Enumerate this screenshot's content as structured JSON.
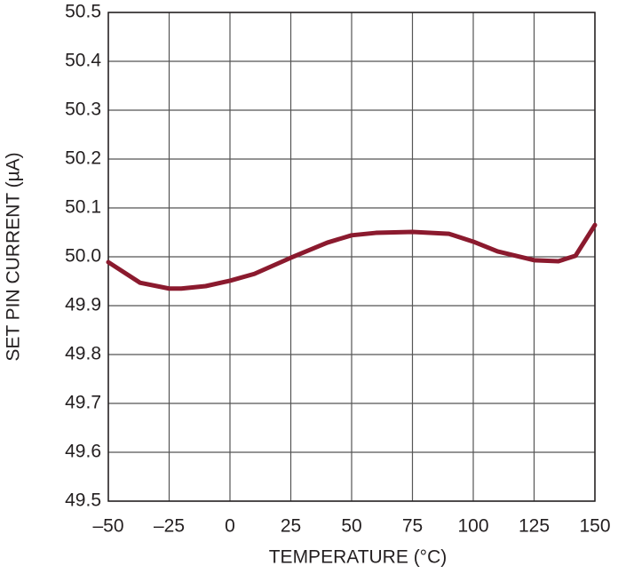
{
  "chart_data": {
    "type": "line",
    "x_label": "TEMPERATURE (°C)",
    "y_label": "SET PIN CURRENT (µA)",
    "x": [
      -50,
      -37,
      -25,
      -20,
      -10,
      0,
      10,
      25,
      40,
      50,
      60,
      75,
      90,
      100,
      110,
      125,
      135,
      142,
      150
    ],
    "series": [
      {
        "color": "#8b1a2e",
        "values": [
          49.989,
          49.947,
          49.935,
          49.935,
          49.94,
          49.951,
          49.965,
          49.998,
          50.029,
          50.044,
          50.049,
          50.051,
          50.047,
          50.031,
          50.011,
          49.993,
          49.991,
          50.002,
          50.065
        ]
      }
    ],
    "xlim": [
      -50,
      150
    ],
    "xticks": [
      {
        "value": -50,
        "label": "–50"
      },
      {
        "value": -25,
        "label": "–25"
      },
      0,
      25,
      50,
      75,
      100,
      125,
      150
    ],
    "ylim": [
      49.5,
      50.5
    ],
    "yticks": [
      49.5,
      49.6,
      49.7,
      49.8,
      49.9,
      {
        "value": 50,
        "label": "50.0"
      },
      50.1,
      50.2,
      50.3,
      50.4,
      50.5
    ],
    "grid": true
  }
}
